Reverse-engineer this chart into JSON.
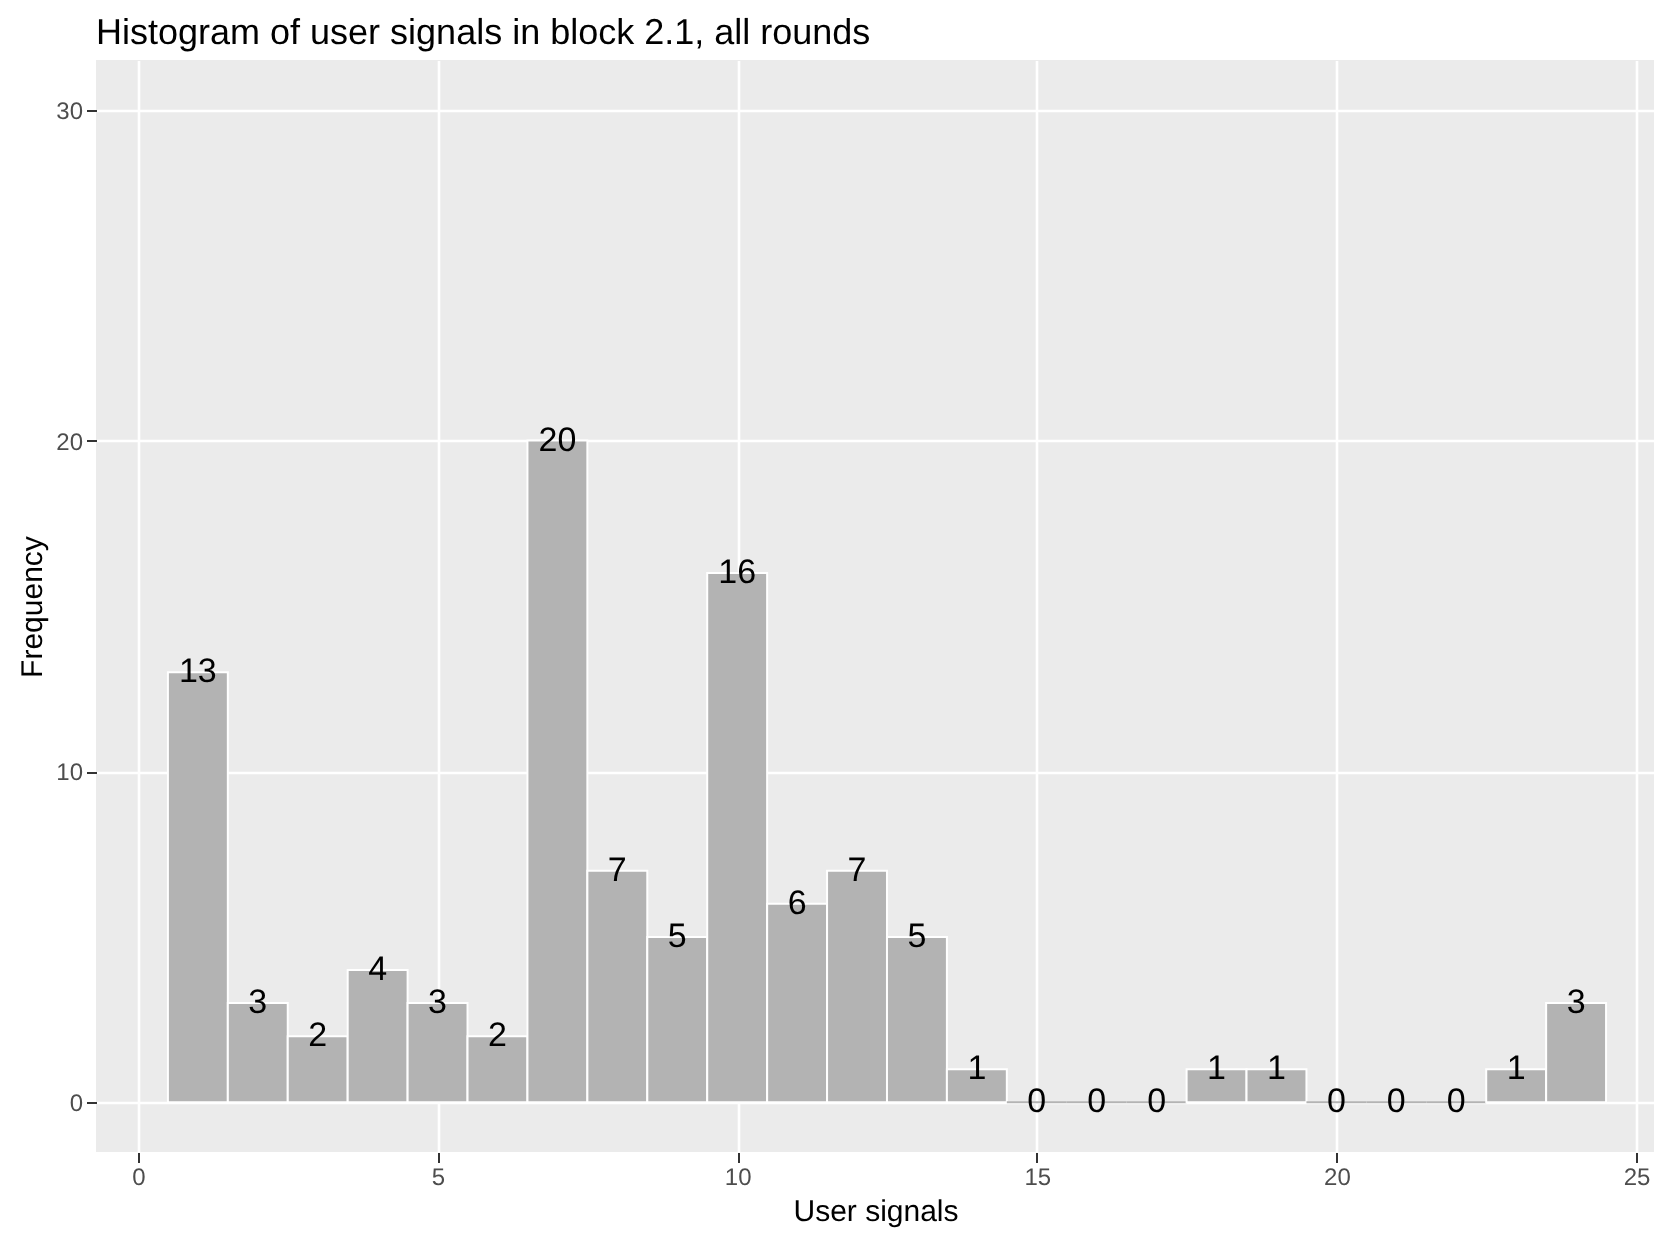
{
  "chart_data": {
    "type": "histogram",
    "title": "Histogram of user signals in block 2.1, all rounds",
    "xlabel": "User signals",
    "ylabel": "Frequency",
    "bins": [
      0.5,
      1.5,
      2.5,
      3.5,
      4.5,
      5.5,
      6.5,
      7.5,
      8.5,
      9.5,
      10.5,
      11.5,
      12.5,
      13.5,
      14.5,
      15.5,
      16.5,
      17.5,
      18.5,
      19.5,
      20.5,
      21.5,
      22.5,
      23.5,
      24.5
    ],
    "values": [
      13,
      3,
      2,
      4,
      3,
      2,
      20,
      7,
      5,
      16,
      6,
      7,
      5,
      1,
      0,
      0,
      0,
      1,
      1,
      0,
      0,
      0,
      1,
      3
    ],
    "color": "#b3b3b3",
    "data_labels": true,
    "grid": true,
    "xlim": [
      -0.7,
      25.3
    ],
    "xticks": [
      0,
      5,
      10,
      15,
      20,
      25
    ],
    "ylim": [
      -1.5,
      31.5
    ],
    "yticks": [
      0,
      10,
      20,
      30
    ]
  }
}
